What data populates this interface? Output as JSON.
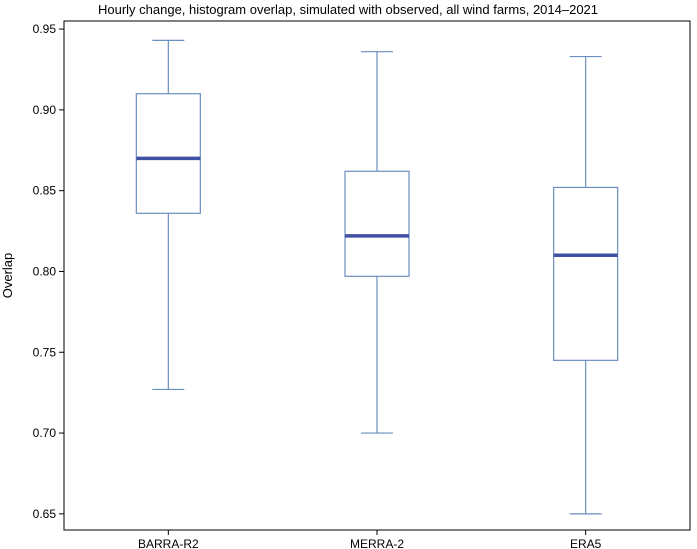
{
  "chart_data": {
    "type": "box",
    "title": "Hourly change, histogram overlap, simulated with observed, all wind farms, 2014–2021",
    "xlabel": "",
    "ylabel": "Overlap",
    "ylim": [
      0.64,
      0.955
    ],
    "yticks": [
      {
        "value": 0.65,
        "label": "0.65"
      },
      {
        "value": 0.7,
        "label": "0.70"
      },
      {
        "value": 0.75,
        "label": "0.75"
      },
      {
        "value": 0.8,
        "label": "0.80"
      },
      {
        "value": 0.85,
        "label": "0.85"
      },
      {
        "value": 0.9,
        "label": "0.90"
      },
      {
        "value": 0.95,
        "label": "0.95"
      }
    ],
    "categories": [
      "BARRA-R2",
      "MERRA-2",
      "ERA5"
    ],
    "boxes": [
      {
        "name": "BARRA-R2",
        "whisker_low": 0.727,
        "q1": 0.836,
        "median": 0.87,
        "q3": 0.91,
        "whisker_high": 0.943
      },
      {
        "name": "MERRA-2",
        "whisker_low": 0.7,
        "q1": 0.797,
        "median": 0.822,
        "q3": 0.862,
        "whisker_high": 0.936
      },
      {
        "name": "ERA5",
        "whisker_low": 0.65,
        "q1": 0.745,
        "median": 0.81,
        "q3": 0.852,
        "whisker_high": 0.933
      }
    ],
    "colors": {
      "box": "#6a8ebf",
      "median": "#3f51a3",
      "axis": "#000000"
    }
  }
}
